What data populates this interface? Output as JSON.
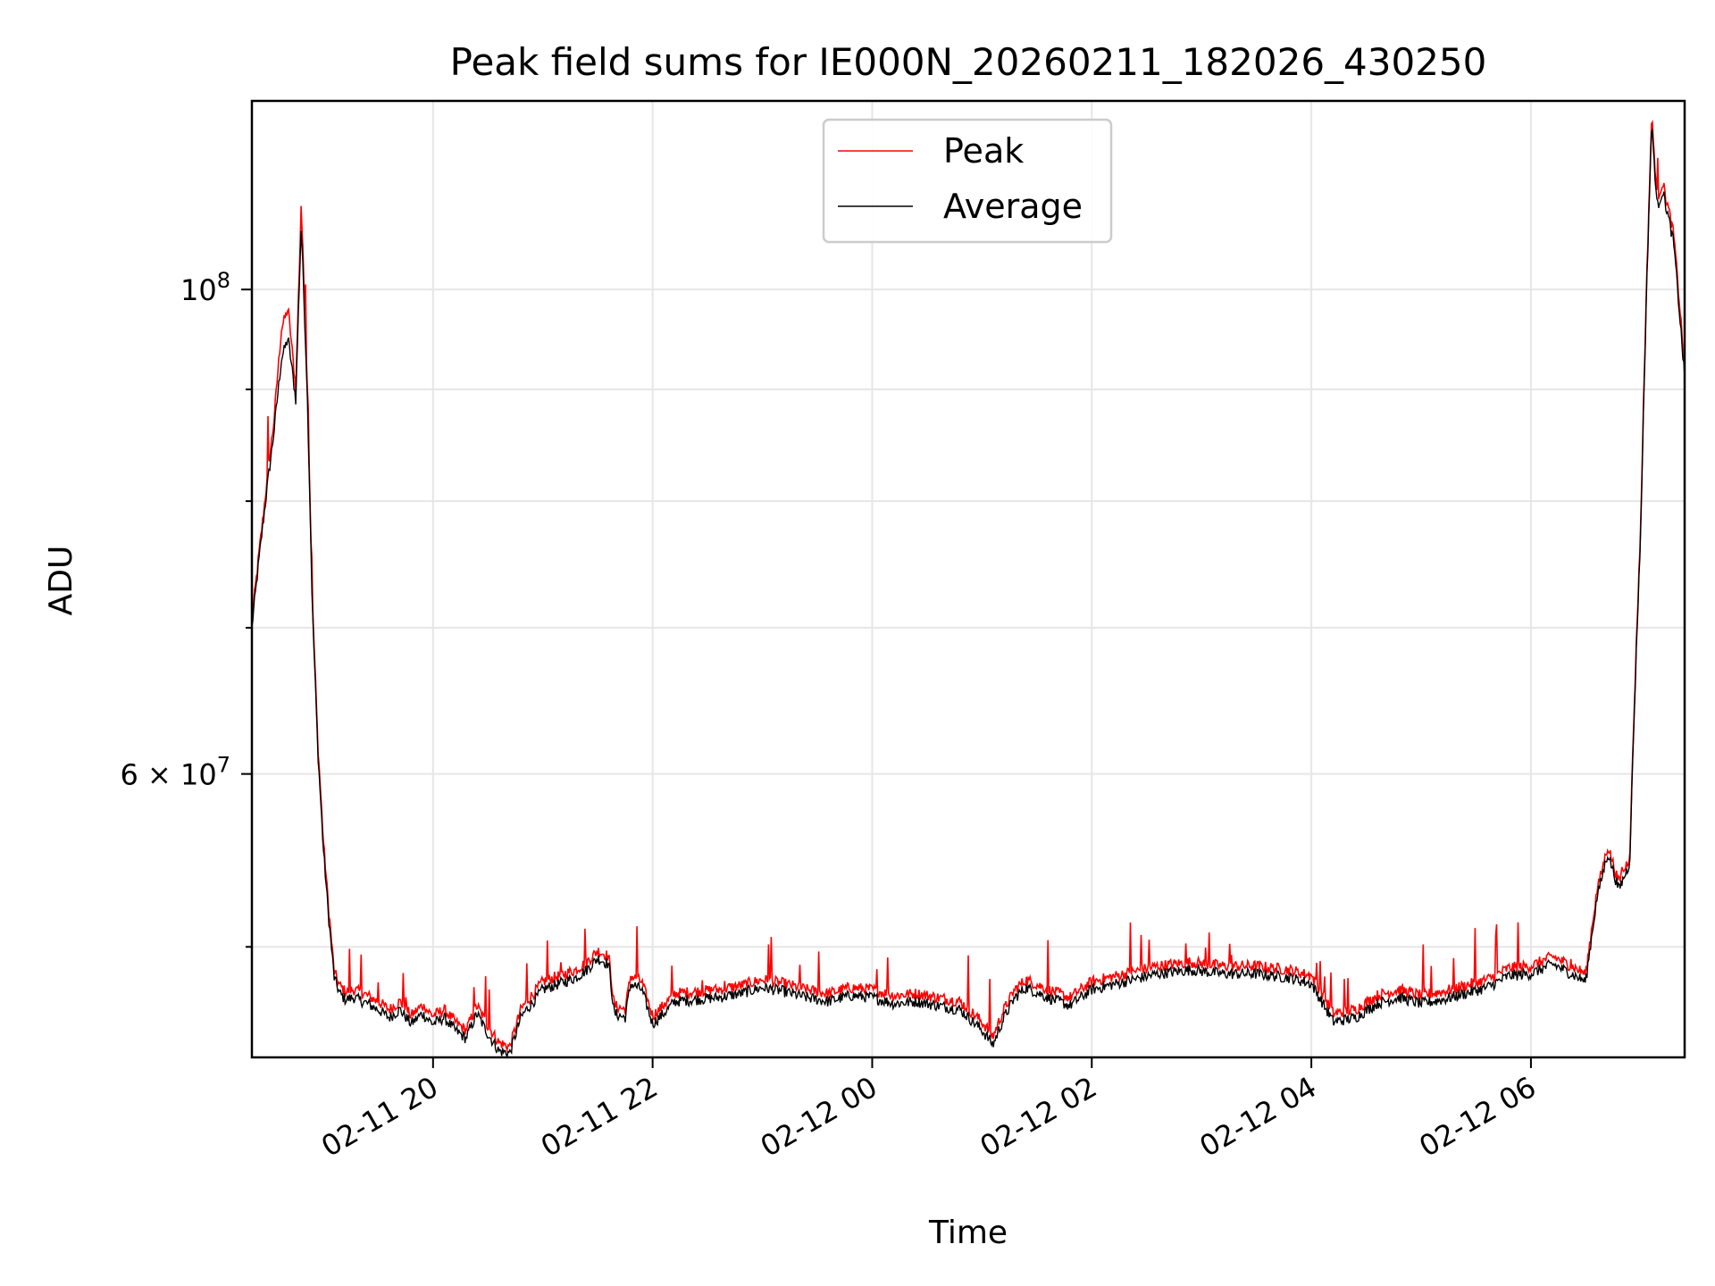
{
  "chart_data": {
    "type": "line",
    "title": "Peak field sums for IE000N_20260211_182026_430250",
    "xlabel": "Time",
    "ylabel": "ADU",
    "yscale": "log",
    "ylim": [
      44500000,
      122000000
    ],
    "xlim_hours": [
      -1.65,
      11.4
    ],
    "grid": true,
    "legend_position": "top-center",
    "x_ticks": [
      {
        "hour": 0,
        "label": "02-11 20"
      },
      {
        "hour": 2,
        "label": "02-11 22"
      },
      {
        "hour": 4,
        "label": "02-12 00"
      },
      {
        "hour": 6,
        "label": "02-12 02"
      },
      {
        "hour": 8,
        "label": "02-12 04"
      },
      {
        "hour": 10,
        "label": "02-12 06"
      }
    ],
    "y_major_ticks": [
      {
        "value": 60000000,
        "label": "6 × 10",
        "exp": "7"
      },
      {
        "value": 100000000,
        "label": "10",
        "exp": "8"
      }
    ],
    "y_minor_ticks": [
      50000000,
      70000000,
      80000000,
      90000000
    ],
    "x_hours": [
      -1.65,
      -1.55,
      -1.45,
      -1.38,
      -1.32,
      -1.25,
      -1.2,
      -1.15,
      -1.1,
      -1.05,
      -1.0,
      -0.95,
      -0.9,
      -0.85,
      -0.8,
      -0.72,
      -0.6,
      -0.5,
      -0.4,
      -0.3,
      -0.2,
      -0.1,
      0.0,
      0.1,
      0.2,
      0.3,
      0.4,
      0.5,
      0.6,
      0.7,
      0.8,
      0.85,
      0.9,
      1.0,
      1.1,
      1.2,
      1.3,
      1.4,
      1.5,
      1.6,
      1.65,
      1.75,
      1.8,
      1.9,
      2.0,
      2.1,
      2.2,
      2.4,
      2.6,
      2.8,
      3.0,
      3.2,
      3.4,
      3.6,
      3.8,
      4.0,
      4.2,
      4.4,
      4.6,
      4.8,
      5.0,
      5.1,
      5.2,
      5.3,
      5.4,
      5.6,
      5.8,
      6.0,
      6.3,
      6.6,
      6.9,
      7.2,
      7.5,
      7.8,
      8.0,
      8.2,
      8.4,
      8.6,
      8.8,
      9.0,
      9.2,
      9.4,
      9.6,
      9.8,
      10.0,
      10.2,
      10.4,
      10.5,
      10.6,
      10.7,
      10.8,
      10.9,
      11.0,
      11.1,
      11.15,
      11.2,
      11.3,
      11.4
    ],
    "series": [
      {
        "name": "Peak",
        "color": "#ff0000",
        "values": [
          70500000,
          78500000,
          87000000,
          96000000,
          98000000,
          90000000,
          109000000,
          92000000,
          72000000,
          62000000,
          56000000,
          52000000,
          48700000,
          48000000,
          47700000,
          47800000,
          47500000,
          47200000,
          46800000,
          47200000,
          46500000,
          47000000,
          46500000,
          46800000,
          46200000,
          45800000,
          47000000,
          46000000,
          45200000,
          45000000,
          46800000,
          47200000,
          47500000,
          48200000,
          48400000,
          48600000,
          48800000,
          49200000,
          49800000,
          49500000,
          47000000,
          46800000,
          48500000,
          48200000,
          46500000,
          47000000,
          47600000,
          47700000,
          47800000,
          48000000,
          48300000,
          48100000,
          47800000,
          47600000,
          47900000,
          47800000,
          47500000,
          47600000,
          47400000,
          47200000,
          46200000,
          45500000,
          46800000,
          47800000,
          48300000,
          47800000,
          47400000,
          48200000,
          48600000,
          49000000,
          49200000,
          49000000,
          49000000,
          48800000,
          48500000,
          46600000,
          46800000,
          47500000,
          47800000,
          47500000,
          47700000,
          48000000,
          48300000,
          48900000,
          49000000,
          49500000,
          48900000,
          48600000,
          53000000,
          55600000,
          53500000,
          55000000,
          78000000,
          120000000,
          110000000,
          112000000,
          106000000,
          92000000
        ]
      },
      {
        "name": "Average",
        "color": "#000000",
        "values": [
          70000000,
          78000000,
          86000000,
          93000000,
          95000000,
          89000000,
          107000000,
          91000000,
          71500000,
          61500000,
          55500000,
          51500000,
          48400000,
          47600000,
          47300000,
          47400000,
          47100000,
          46800000,
          46400000,
          46800000,
          46100000,
          46600000,
          46100000,
          46400000,
          45800000,
          45400000,
          46600000,
          45600000,
          44800000,
          44700000,
          46400000,
          46800000,
          47100000,
          47800000,
          48000000,
          48200000,
          48400000,
          48800000,
          49400000,
          49100000,
          46600000,
          46400000,
          48100000,
          47800000,
          46100000,
          46600000,
          47200000,
          47300000,
          47400000,
          47600000,
          47900000,
          47700000,
          47400000,
          47200000,
          47500000,
          47400000,
          47100000,
          47200000,
          47000000,
          46800000,
          45800000,
          45100000,
          46400000,
          47400000,
          47900000,
          47400000,
          47000000,
          47800000,
          48200000,
          48600000,
          48800000,
          48600000,
          48600000,
          48400000,
          48100000,
          46200000,
          46400000,
          47100000,
          47400000,
          47100000,
          47300000,
          47600000,
          47900000,
          48500000,
          48600000,
          49100000,
          48500000,
          48200000,
          52600000,
          55200000,
          53100000,
          54600000,
          77500000,
          119000000,
          109000000,
          111000000,
          105000000,
          91000000
        ]
      }
    ]
  }
}
